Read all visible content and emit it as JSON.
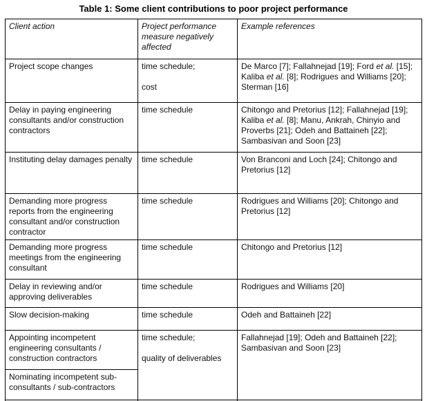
{
  "title": "Table 1: Some client contributions to poor project performance",
  "table": {
    "headers": [
      "Client action",
      "Project performance measure negatively affected",
      "Example references"
    ],
    "rows": [
      {
        "action": "Project scope changes",
        "measure": "time schedule;\n\ncost",
        "refs": [
          {
            "text": "De Marco [7]; Fallahnejad [19]; Ford "
          },
          {
            "text": "et al.",
            "italic": true
          },
          {
            "text": " [15]; Kaliba "
          },
          {
            "text": "et al.",
            "italic": true
          },
          {
            "text": " [8]; Rodrigues and Williams [20]; Sterman [16]"
          }
        ]
      },
      {
        "action": "Delay in paying engineering consultants and/or construction contractors",
        "measure": "time schedule",
        "refs": [
          {
            "text": "Chitongo and Pretorius [12]; Fallahnejad [19]; Kaliba "
          },
          {
            "text": "et al.",
            "italic": true
          },
          {
            "text": " [8]; Manu, Ankrah, Chinyio and Proverbs [21]; Odeh and Battaineh [22]; Sambasivan and Soon [23]"
          }
        ]
      },
      {
        "action": "Instituting delay damages penalty",
        "measure": "time schedule",
        "refs": [
          {
            "text": "Von Branconi and Loch [24]; Chitongo and Pretorius [12]"
          }
        ]
      },
      {
        "action": "Demanding more progress reports from the engineering consultant and/or construction contractor",
        "measure": "time schedule",
        "refs": [
          {
            "text": "Rodrigues and Williams [20]; Chitongo and Pretorius [12]"
          }
        ]
      },
      {
        "action": "Demanding more progress meetings from the engineering consultant",
        "measure": "time schedule",
        "refs": [
          {
            "text": "Chitongo and Pretorius [12]"
          }
        ]
      },
      {
        "action": "Delay in reviewing and/or approving deliverables",
        "measure": "time schedule",
        "refs": [
          {
            "text": "Rodrigues and Williams [20]"
          }
        ]
      },
      {
        "action": "Slow decision-making",
        "measure": "time schedule",
        "refs": [
          {
            "text": "Odeh and Battaineh [22]"
          }
        ]
      },
      {
        "action": "Appointing incompetent engineering consultants / construction contractors",
        "measure": "time schedule;\n\nquality of deliverables",
        "refs": [
          {
            "text": "Fallahnejad [19]; Odeh and Battaineh [22]; Sambasivan and Soon [23]"
          }
        ]
      },
      {
        "action": "Nominating incompetent sub-consultants / sub-contractors"
      }
    ]
  }
}
